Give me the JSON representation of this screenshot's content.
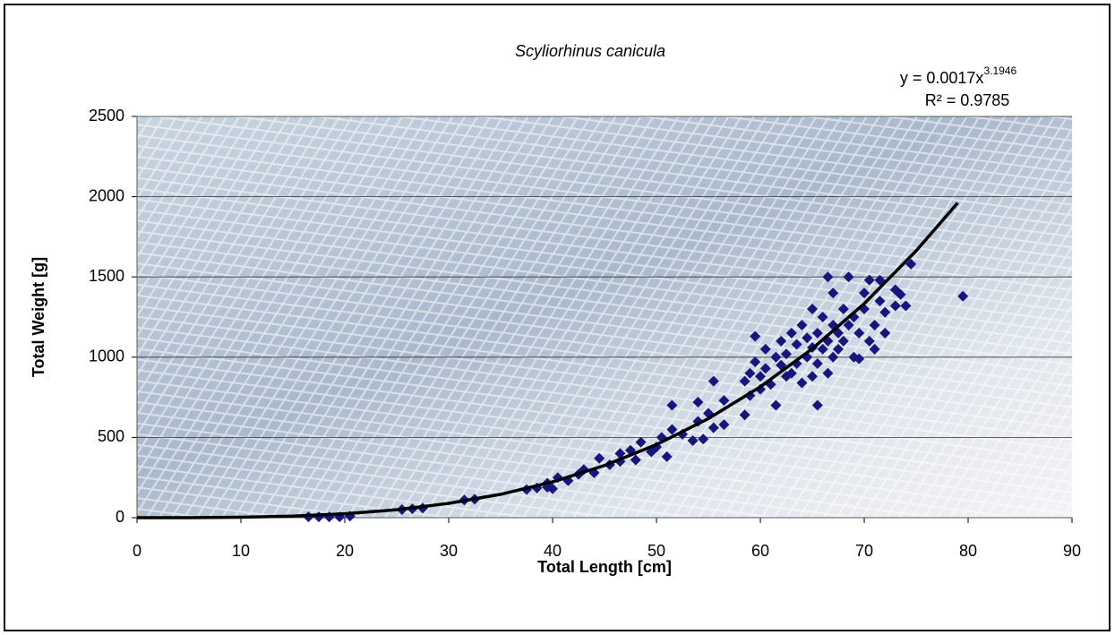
{
  "chart_data": {
    "type": "scatter",
    "title": "Scyliorhinus canicula",
    "x_label": "Total Length [cm]",
    "y_label": "Total Weight [g]",
    "equation": "y = 0.0017x",
    "equation_exponent": "3.1946",
    "r_squared": "R² = 0.9785",
    "xlim": [
      0,
      90
    ],
    "ylim": [
      0,
      2500
    ],
    "xticks": [
      0,
      10,
      20,
      30,
      40,
      50,
      60,
      70,
      80,
      90
    ],
    "yticks": [
      0,
      500,
      1000,
      1500,
      2000,
      2500
    ],
    "grid": true,
    "series": [
      {
        "color": "#16167f",
        "x": [
          16.5,
          17.5,
          18.5,
          19.5,
          20.5,
          25.5,
          26.5,
          27.5,
          31.5,
          32.5,
          37.5,
          38.5,
          39.5,
          39.5,
          40,
          40.5,
          41.5,
          42.5,
          43,
          44,
          44.5,
          45.5,
          46.5,
          46.5,
          47.5,
          48,
          48.5,
          49.5,
          50,
          50.5,
          51,
          51.5,
          51.5,
          52.5,
          53.5,
          54,
          54,
          54.5,
          55,
          55.5,
          55.5,
          56.5,
          56.5,
          58.5,
          58.5,
          59,
          59,
          59.5,
          59.5,
          60,
          60,
          60.5,
          60.5,
          61,
          61.5,
          61.5,
          62,
          62,
          62.5,
          62.5,
          63,
          63,
          63.5,
          63.5,
          64,
          64,
          64.5,
          64.5,
          65,
          65,
          65,
          65.5,
          65.5,
          65.5,
          66,
          66,
          66.5,
          66.5,
          66.5,
          67,
          67,
          67,
          67.5,
          67.5,
          68,
          68,
          68.5,
          68.5,
          69,
          69,
          69.5,
          69.5,
          70,
          70,
          70.5,
          70.5,
          71,
          71,
          71.5,
          71.5,
          72,
          72,
          73,
          73,
          73.5,
          74,
          74.5,
          79.5
        ],
        "y": [
          5,
          5,
          5,
          5,
          10,
          50,
          55,
          60,
          110,
          115,
          175,
          185,
          190,
          215,
          180,
          250,
          230,
          270,
          300,
          280,
          370,
          330,
          350,
          400,
          420,
          360,
          470,
          410,
          440,
          500,
          380,
          550,
          700,
          520,
          480,
          600,
          720,
          490,
          650,
          560,
          850,
          580,
          730,
          640,
          850,
          760,
          900,
          1130,
          970,
          800,
          880,
          1050,
          930,
          830,
          1000,
          700,
          1100,
          950,
          880,
          1020,
          900,
          1150,
          960,
          1080,
          840,
          1200,
          1000,
          1120,
          880,
          1060,
          1300,
          700,
          1150,
          960,
          1050,
          1250,
          1500,
          900,
          1100,
          1400,
          1000,
          1200,
          1150,
          1050,
          1300,
          1100,
          1500,
          1200,
          1000,
          1250,
          1150,
          990,
          1300,
          1400,
          1480,
          1100,
          1200,
          1050,
          1480,
          1350,
          1150,
          1280,
          1420,
          1320,
          1390,
          1320,
          1580,
          1380
        ]
      }
    ],
    "trendline": {
      "color": "#000000",
      "x": [
        0,
        5,
        10,
        15,
        20,
        25,
        30,
        35,
        40,
        45,
        50,
        55,
        60,
        65,
        70,
        75,
        79
      ],
      "y": [
        0,
        0.29,
        2.66,
        9.72,
        24.4,
        49.7,
        89.0,
        145.7,
        223.1,
        325.0,
        455.2,
        617.3,
        815.3,
        1052.8,
        1333.8,
        1662.8,
        1961.6
      ]
    }
  }
}
